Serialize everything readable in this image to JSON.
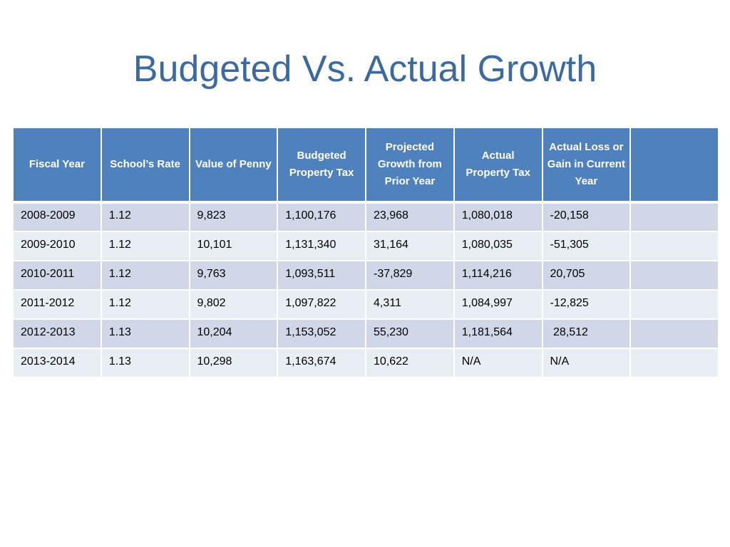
{
  "slide": {
    "title": "Budgeted Vs. Actual Growth"
  },
  "table": {
    "headers": [
      "Fiscal Year",
      "School’s Rate",
      "Value of Penny",
      "Budgeted Property Tax",
      "Projected Growth from Prior Year",
      "Actual Property Tax",
      "Actual Loss or Gain in Current Year",
      ""
    ],
    "rows": [
      [
        "2008-2009",
        "1.12",
        "9,823",
        "1,100,176",
        "23,968",
        "1,080,018",
        "-20,158",
        ""
      ],
      [
        "2009-2010",
        "1.12",
        "10,101",
        "1,131,340",
        "31,164",
        "1,080,035",
        "-51,305",
        ""
      ],
      [
        "2010-2011",
        "1.12",
        "9,763",
        "1,093,511",
        "-37,829",
        "1,114,216",
        "20,705",
        ""
      ],
      [
        "2011-2012",
        "1.12",
        "9,802",
        "1,097,822",
        "4,311",
        "1,084,997",
        "-12,825",
        ""
      ],
      [
        "2012-2013",
        "1.13",
        "10,204",
        "1,153,052",
        "55,230",
        "1,181,564",
        " 28,512",
        ""
      ],
      [
        "2013-2014",
        "1.13",
        "10,298",
        "1,163,674",
        "10,622",
        "N/A",
        "N/A",
        ""
      ]
    ]
  },
  "colors": {
    "title": "#3c6aa0",
    "header_bg": "#4f81bd",
    "row_dark": "#d0d8e8",
    "row_light": "#e9edf4"
  }
}
